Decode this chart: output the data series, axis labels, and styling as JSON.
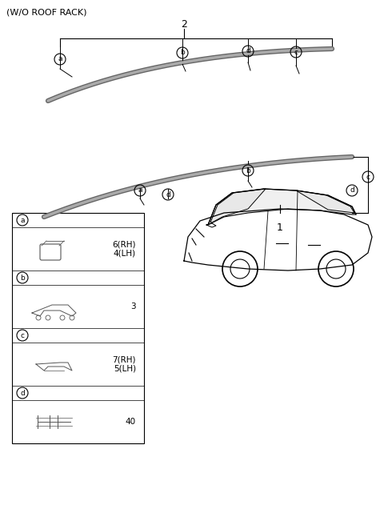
{
  "title": "(W/O ROOF RACK)",
  "bg_color": "#ffffff",
  "fig_width": 4.8,
  "fig_height": 6.56,
  "dpi": 100,
  "label_2": "2",
  "label_1": "1",
  "parts": [
    {
      "label": "a",
      "part_num": "6(RH)\n4(LH)",
      "row": 0
    },
    {
      "label": "b",
      "part_num": "3",
      "row": 1
    },
    {
      "label": "c",
      "part_num": "7(RH)\n5(LH)",
      "row": 2
    },
    {
      "label": "d",
      "part_num": "40",
      "row": 3
    }
  ]
}
